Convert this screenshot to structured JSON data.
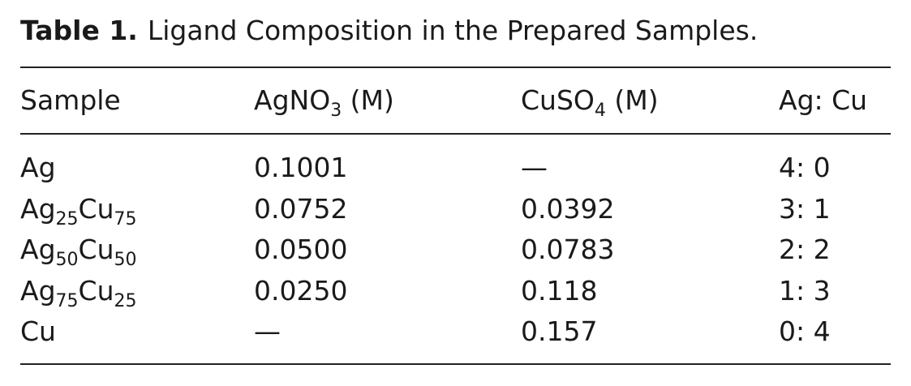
{
  "caption": {
    "label": "Table 1.",
    "text": "Ligand Composition in the Prepared Samples."
  },
  "table": {
    "header": [
      [
        "Sample"
      ],
      [
        "AgNO",
        "3",
        " (M)"
      ],
      [
        "CuSO",
        "4",
        " (M)"
      ],
      [
        "Ag: Cu"
      ]
    ],
    "rows": [
      [
        [
          "Ag"
        ],
        [
          "0.1001"
        ],
        [
          "—"
        ],
        [
          "4: 0"
        ]
      ],
      [
        [
          "Ag",
          "25",
          "Cu",
          "75"
        ],
        [
          "0.0752"
        ],
        [
          "0.0392"
        ],
        [
          "3: 1"
        ]
      ],
      [
        [
          "Ag",
          "50",
          "Cu",
          "50"
        ],
        [
          "0.0500"
        ],
        [
          "0.0783"
        ],
        [
          "2: 2"
        ]
      ],
      [
        [
          "Ag",
          "75",
          "Cu",
          "25"
        ],
        [
          "0.0250"
        ],
        [
          "0.118"
        ],
        [
          "1: 3"
        ]
      ],
      [
        [
          "Cu"
        ],
        [
          "—"
        ],
        [
          "0.157"
        ],
        [
          "0: 4"
        ]
      ]
    ]
  }
}
